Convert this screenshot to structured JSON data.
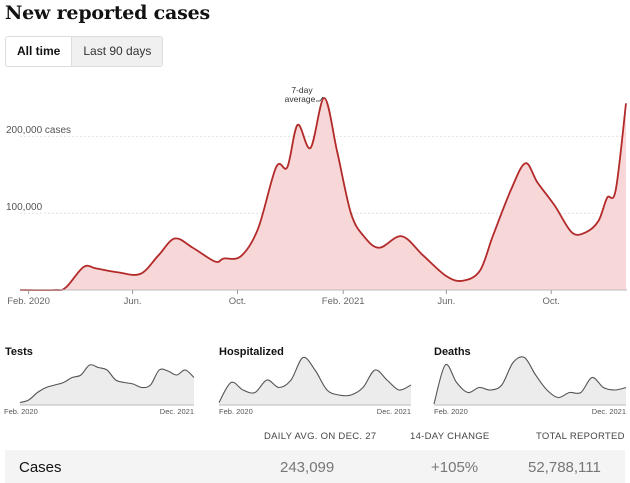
{
  "header": {
    "title": "New reported cases"
  },
  "tabs": [
    {
      "label": "All time"
    },
    {
      "label": "Last 90 days"
    }
  ],
  "main_chart": {
    "y_ticks": [
      "200,000 cases",
      "100,000"
    ],
    "x_ticks": [
      "Feb. 2020",
      "Jun.",
      "Oct.",
      "Feb. 2021",
      "Jun.",
      "Oct."
    ],
    "annotation_line1": "7-day",
    "annotation_line2": "average"
  },
  "small_charts": [
    {
      "title": "Tests",
      "start": "Feb. 2020",
      "end": "Dec. 2021"
    },
    {
      "title": "Hospitalized",
      "start": "Feb. 2020",
      "end": "Dec. 2021"
    },
    {
      "title": "Deaths",
      "start": "Feb. 2020",
      "end": "Dec. 2021"
    }
  ],
  "stats": {
    "headers": [
      "DAILY AVG. ON DEC. 27",
      "14-DAY CHANGE",
      "TOTAL REPORTED"
    ],
    "row": {
      "label": "Cases",
      "daily_avg": "243,099",
      "change": "+105%",
      "total": "52,788,111"
    }
  },
  "colors": {
    "line": "#b32a2a",
    "fill": "#f7d7d7",
    "small_line": "#555555",
    "small_fill": "#ececec"
  },
  "chart_data": [
    {
      "type": "area",
      "title": "New reported cases",
      "xlabel": "",
      "ylabel": "",
      "x_range": [
        "2020-01",
        "2021-12"
      ],
      "ylim": [
        0,
        250000
      ],
      "grid": true,
      "series": [
        {
          "values": [
            [
              "2020-01-22",
              0
            ],
            [
              "2020-03-01",
              0
            ],
            [
              "2020-03-15",
              3000
            ],
            [
              "2020-04-05",
              30000
            ],
            [
              "2020-04-20",
              28000
            ],
            [
              "2020-05-15",
              23000
            ],
            [
              "2020-06-10",
              21000
            ],
            [
              "2020-07-01",
              45000
            ],
            [
              "2020-07-20",
              67000
            ],
            [
              "2020-08-10",
              55000
            ],
            [
              "2020-09-05",
              37000
            ],
            [
              "2020-09-15",
              41000
            ],
            [
              "2020-10-05",
              44000
            ],
            [
              "2020-10-25",
              80000
            ],
            [
              "2020-11-15",
              160000
            ],
            [
              "2020-11-28",
              160000
            ],
            [
              "2020-12-10",
              215000
            ],
            [
              "2020-12-25",
              185000
            ],
            [
              "2021-01-10",
              250000
            ],
            [
              "2021-01-25",
              180000
            ],
            [
              "2021-02-10",
              100000
            ],
            [
              "2021-02-25",
              70000
            ],
            [
              "2021-03-15",
              55000
            ],
            [
              "2021-04-10",
              70000
            ],
            [
              "2021-05-05",
              45000
            ],
            [
              "2021-06-01",
              18000
            ],
            [
              "2021-06-20",
              12000
            ],
            [
              "2021-07-10",
              25000
            ],
            [
              "2021-07-25",
              70000
            ],
            [
              "2021-08-15",
              130000
            ],
            [
              "2021-09-01",
              165000
            ],
            [
              "2021-09-15",
              140000
            ],
            [
              "2021-10-05",
              110000
            ],
            [
              "2021-10-25",
              75000
            ],
            [
              "2021-11-10",
              75000
            ],
            [
              "2021-11-25",
              90000
            ],
            [
              "2021-12-05",
              120000
            ],
            [
              "2021-12-15",
              130000
            ],
            [
              "2021-12-27",
              243099
            ]
          ]
        }
      ],
      "annotations": [
        "7-day average"
      ]
    },
    {
      "type": "area",
      "title": "Tests",
      "x_range": [
        "2020-02",
        "2021-12"
      ],
      "series": [
        {
          "values": [
            0.05,
            0.1,
            0.25,
            0.35,
            0.4,
            0.45,
            0.55,
            0.6,
            0.8,
            0.75,
            0.7,
            0.5,
            0.45,
            0.42,
            0.35,
            0.4,
            0.7,
            0.68,
            0.6,
            0.7,
            0.55
          ]
        }
      ]
    },
    {
      "type": "area",
      "title": "Hospitalized",
      "x_range": [
        "2020-02",
        "2021-12"
      ],
      "series": [
        {
          "values": [
            0.05,
            0.45,
            0.3,
            0.25,
            0.5,
            0.35,
            0.5,
            0.95,
            0.7,
            0.3,
            0.2,
            0.2,
            0.35,
            0.7,
            0.5,
            0.3,
            0.4
          ]
        }
      ]
    },
    {
      "type": "area",
      "title": "Deaths",
      "x_range": [
        "2020-02",
        "2021-12"
      ],
      "series": [
        {
          "values": [
            0.02,
            0.8,
            0.45,
            0.25,
            0.35,
            0.3,
            0.4,
            0.85,
            0.95,
            0.6,
            0.3,
            0.15,
            0.25,
            0.25,
            0.55,
            0.35,
            0.3,
            0.35
          ]
        }
      ]
    }
  ]
}
